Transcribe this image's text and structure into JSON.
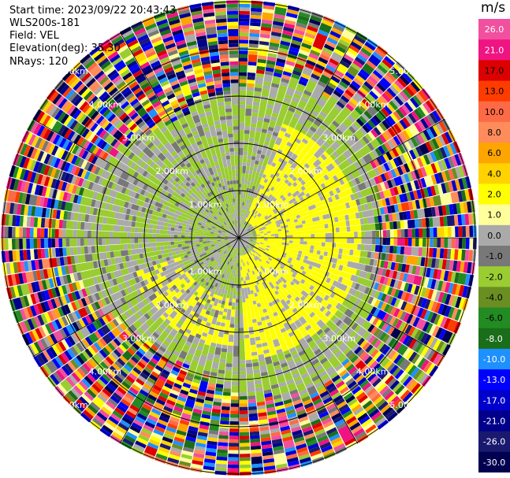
{
  "info": {
    "start_time": "Start time: 2023/09/22 20:43:43",
    "device": "WLS200s-181",
    "field": "Field: VEL",
    "elevation": "Elevation(deg): 35.30",
    "nrays": "NRays: 120"
  },
  "colorbar": {
    "unit": "m/s",
    "levels": [
      "26.0",
      "21.0",
      "17.0",
      "13.0",
      "10.0",
      "8.0",
      "6.0",
      "4.0",
      "2.0",
      "1.0",
      "0.0",
      "-1.0",
      "-2.0",
      "-4.0",
      "-6.0",
      "-8.0",
      "-10.0",
      "-13.0",
      "-17.0",
      "-21.0",
      "-26.0",
      "-30.0"
    ],
    "colors": [
      "#f0509e",
      "#f01482",
      "#dc0000",
      "#ff3c00",
      "#ff6a46",
      "#ff8c5a",
      "#ffa500",
      "#ffd200",
      "#ffff00",
      "#ffff9b",
      "#aaaaaa",
      "#787878",
      "#9acd32",
      "#6b8e23",
      "#228b22",
      "#1a6e1a",
      "#1e90ff",
      "#0000ff",
      "#0000cd",
      "#00008b",
      "#191970",
      "#000050"
    ]
  },
  "chart_data": {
    "type": "heatmap",
    "projection": "polar PPI",
    "field": "VEL",
    "units": "m/s",
    "range_rings_km": [
      1.0,
      2.0,
      3.0,
      4.0,
      5.0
    ],
    "ring_labels": [
      "1.00km",
      "2.00km",
      "3.00km",
      "4.00km",
      "5.00km"
    ],
    "nrays": 120,
    "radial_lines": 12,
    "value_range": [
      -30.0,
      26.0
    ],
    "inner_region_km": 3.2,
    "inner_values": {
      "near_zero_gray": 0.0,
      "slight_negative_green": -1.5,
      "positive_yellow": 2.0
    },
    "outer_region": "noise"
  }
}
